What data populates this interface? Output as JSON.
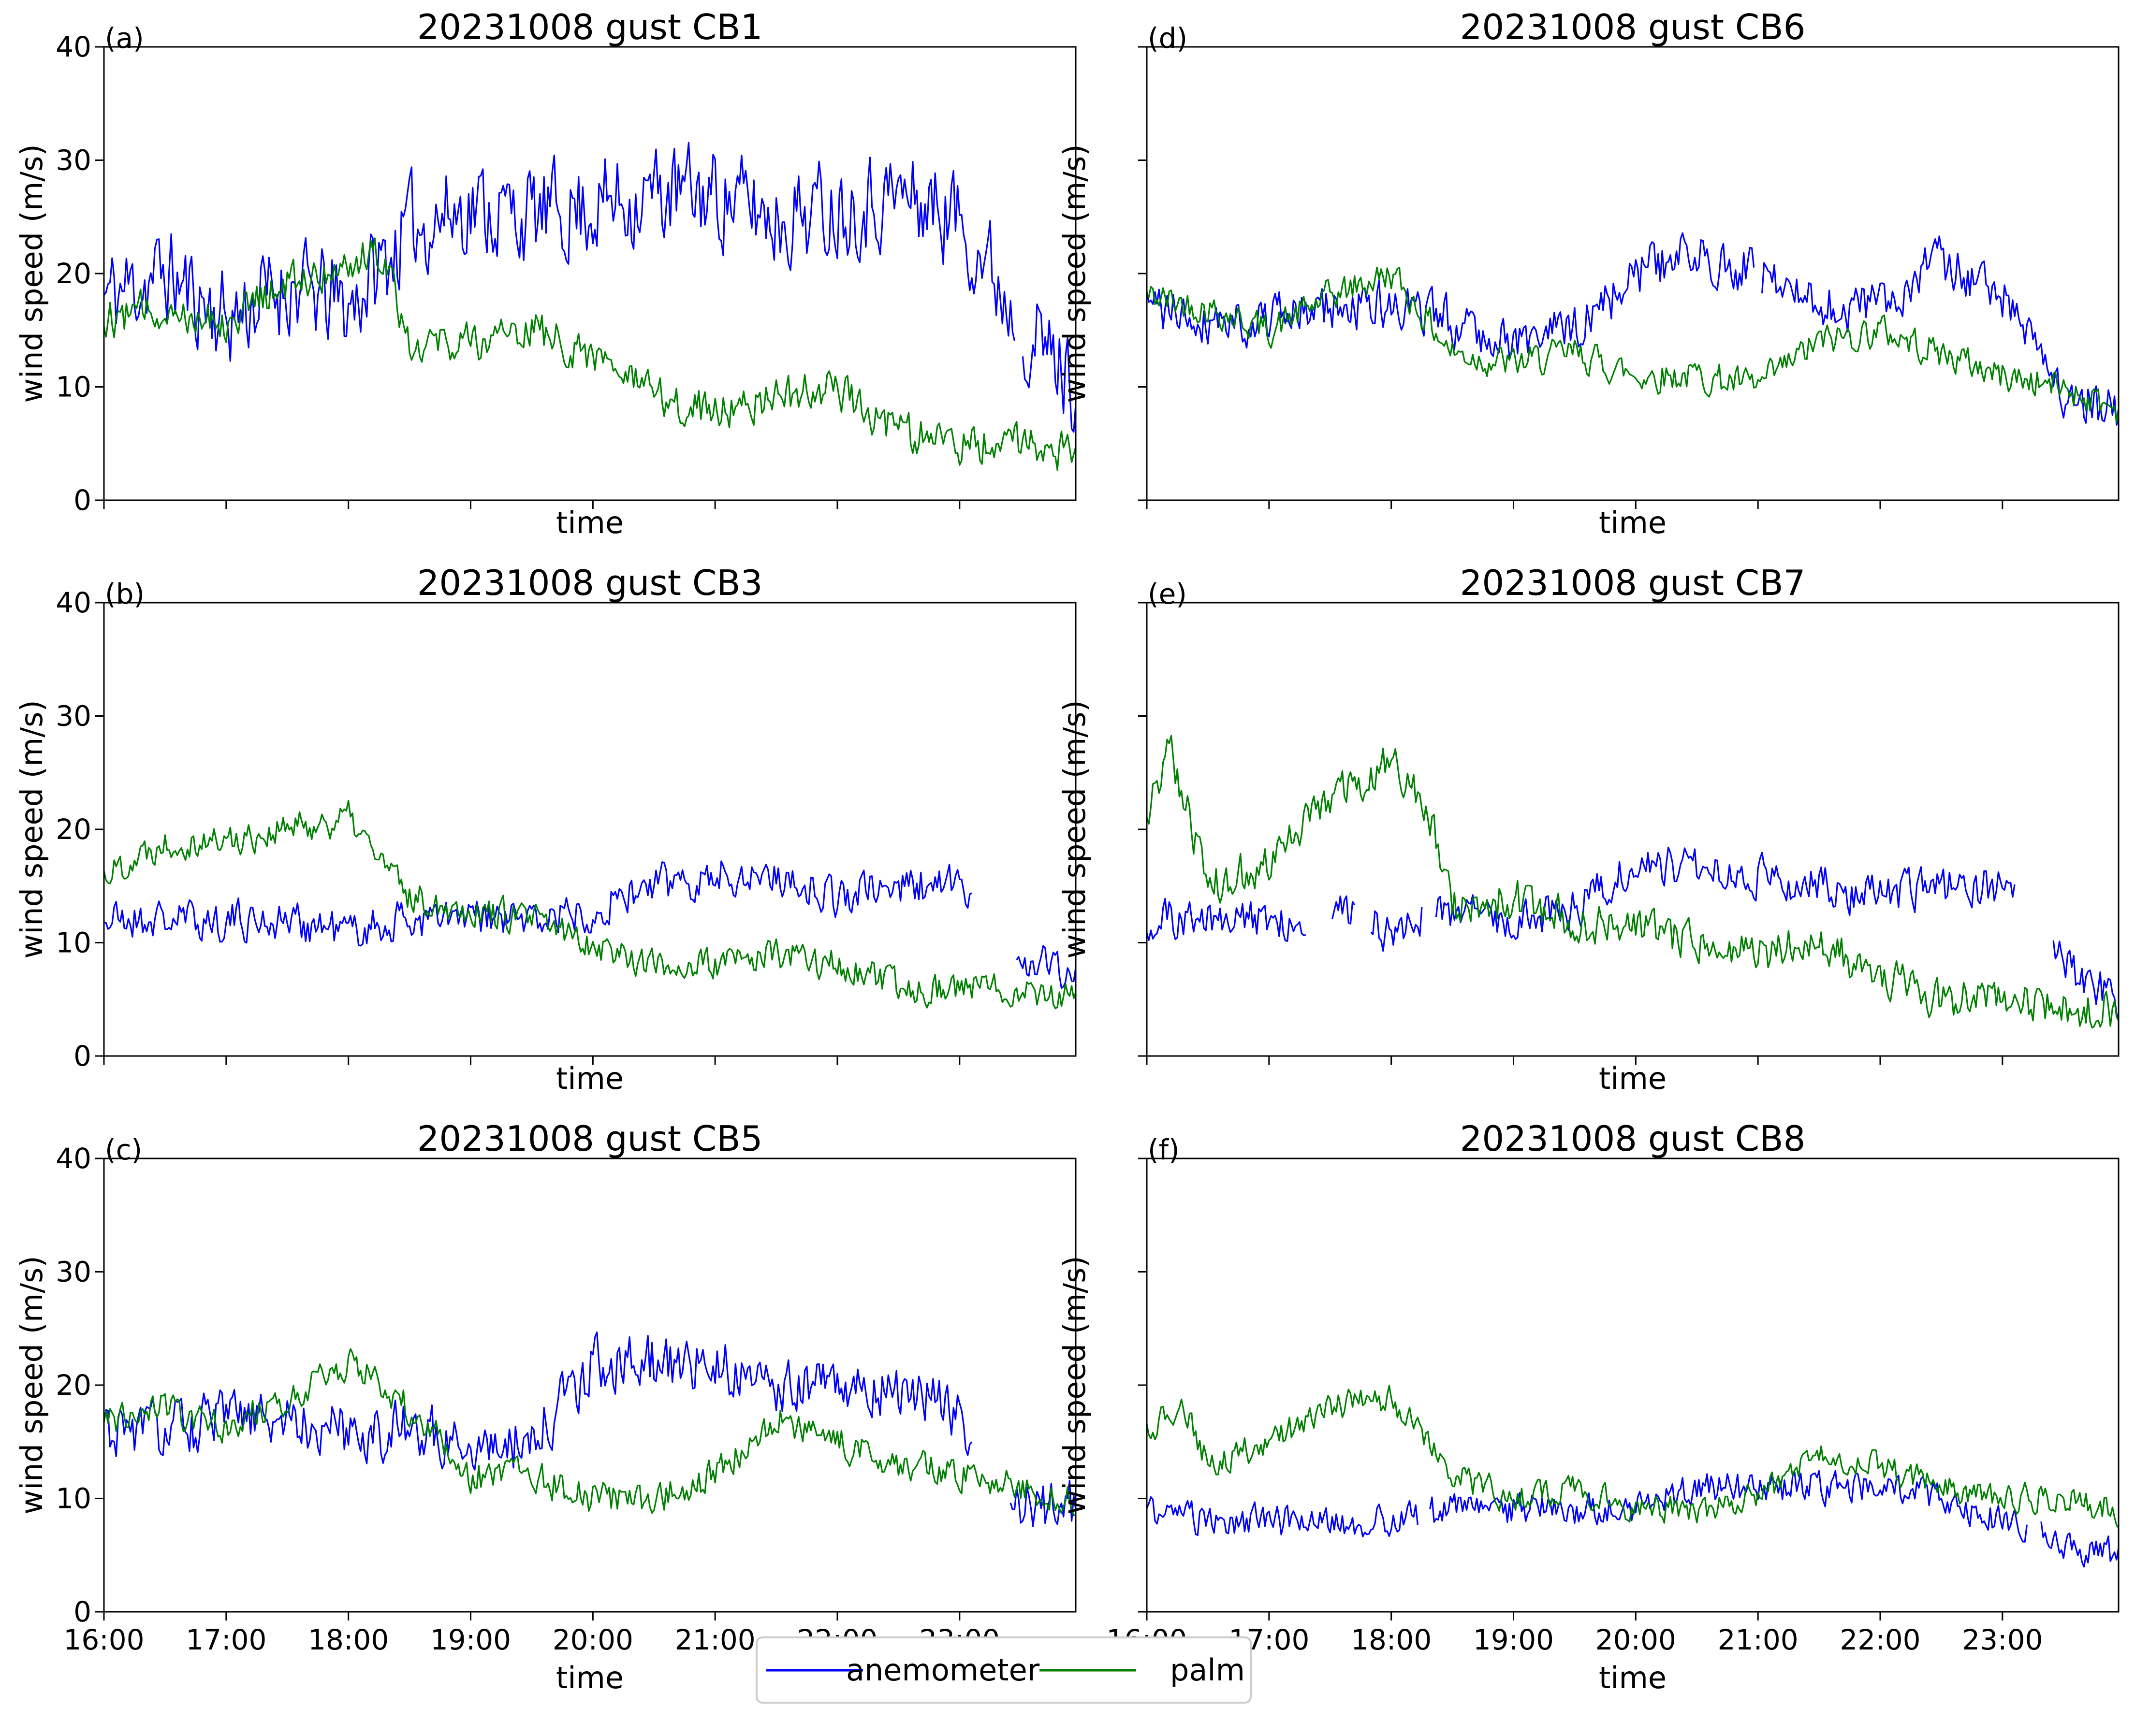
{
  "figure": {
    "legend": {
      "entries": [
        {
          "label": "anemometer",
          "color": "#0000ff"
        },
        {
          "label": "palm",
          "color": "#008000"
        }
      ]
    }
  },
  "chart_data": [
    {
      "type": "line",
      "panel": "(a)",
      "title": "20231008 gust CB1",
      "xlabel": "time",
      "ylabel": "wind speed (m/s)",
      "ylim": [
        0,
        40
      ],
      "xlim": [
        16.0,
        23.95
      ],
      "yticks": [
        0,
        10,
        20,
        30,
        40
      ],
      "show_ytick_labels": true,
      "xticks": [
        "16:00",
        "17:00",
        "18:00",
        "19:00",
        "20:00",
        "21:00",
        "22:00",
        "23:00"
      ],
      "show_xtick_labels": false,
      "series": [
        {
          "name": "anemometer",
          "color": "#0000ff",
          "x": [
            16.0,
            16.5,
            17.0,
            17.5,
            18.0,
            18.5,
            19.0,
            19.5,
            20.0,
            20.5,
            21.0,
            21.5,
            22.0,
            22.5,
            23.0,
            23.5,
            23.95
          ],
          "y": [
            18,
            20,
            16,
            19,
            17,
            24,
            26,
            25,
            26,
            27,
            27,
            25,
            26,
            27,
            25,
            16,
            10
          ],
          "amp": 6.0,
          "seed": 11,
          "gaps": [
            [
              23.45,
              23.5
            ]
          ]
        },
        {
          "name": "palm",
          "color": "#008000",
          "x": [
            16.0,
            16.5,
            17.0,
            17.5,
            18.0,
            18.3,
            18.5,
            19.0,
            19.5,
            20.0,
            20.5,
            21.0,
            21.5,
            22.0,
            22.5,
            23.0,
            23.5,
            23.95
          ],
          "y": [
            16,
            17,
            16,
            19,
            21,
            22,
            14,
            14,
            15,
            13,
            9,
            8,
            9,
            10,
            6,
            5,
            5,
            4
          ],
          "amp": 2.5,
          "seed": 12,
          "gaps": []
        }
      ]
    },
    {
      "type": "line",
      "panel": "(b)",
      "title": "20231008 gust CB3",
      "xlabel": "time",
      "ylabel": "wind speed (m/s)",
      "ylim": [
        0,
        40
      ],
      "xlim": [
        16.0,
        23.95
      ],
      "yticks": [
        0,
        10,
        20,
        30,
        40
      ],
      "show_ytick_labels": true,
      "xticks": [
        "16:00",
        "17:00",
        "18:00",
        "19:00",
        "20:00",
        "21:00",
        "22:00",
        "23:00"
      ],
      "show_xtick_labels": false,
      "series": [
        {
          "name": "anemometer",
          "color": "#0000ff",
          "x": [
            16.0,
            16.5,
            17.0,
            17.5,
            18.0,
            18.5,
            19.0,
            19.5,
            20.0,
            20.5,
            21.0,
            21.5,
            22.0,
            22.5,
            23.0,
            23.5,
            23.95
          ],
          "y": [
            12,
            12,
            12,
            12,
            11,
            12,
            12,
            12,
            13,
            15,
            16,
            16,
            14,
            15,
            15,
            9,
            7
          ],
          "amp": 2.5,
          "seed": 21,
          "gaps": [
            [
              23.1,
              23.45
            ]
          ]
        },
        {
          "name": "palm",
          "color": "#008000",
          "x": [
            16.0,
            16.5,
            17.0,
            17.5,
            18.0,
            18.5,
            19.0,
            19.5,
            20.0,
            20.5,
            21.0,
            21.5,
            22.0,
            22.5,
            23.0,
            23.5,
            23.95
          ],
          "y": [
            16,
            19,
            19,
            20,
            21,
            14,
            13,
            12,
            10,
            8,
            8,
            9,
            8,
            6,
            6,
            6,
            5
          ],
          "amp": 2.0,
          "seed": 22,
          "gaps": []
        }
      ]
    },
    {
      "type": "line",
      "panel": "(c)",
      "title": "20231008 gust CB5",
      "xlabel": "time",
      "ylabel": "wind speed (m/s)",
      "ylim": [
        0,
        40
      ],
      "xlim": [
        16.0,
        23.95
      ],
      "yticks": [
        0,
        10,
        20,
        30,
        40
      ],
      "show_ytick_labels": true,
      "xticks": [
        "16:00",
        "17:00",
        "18:00",
        "19:00",
        "20:00",
        "21:00",
        "22:00",
        "23:00"
      ],
      "show_xtick_labels": true,
      "series": [
        {
          "name": "anemometer",
          "color": "#0000ff",
          "x": [
            16.0,
            16.5,
            17.0,
            17.5,
            18.0,
            18.5,
            19.0,
            19.5,
            20.0,
            20.5,
            21.0,
            21.5,
            22.0,
            22.5,
            23.0,
            23.5,
            23.95
          ],
          "y": [
            16,
            16,
            17,
            17,
            16,
            16,
            15,
            15,
            22,
            22,
            22,
            20,
            20,
            20,
            17,
            10,
            9
          ],
          "amp": 3.5,
          "seed": 31,
          "gaps": [
            [
              23.1,
              23.4
            ]
          ]
        },
        {
          "name": "palm",
          "color": "#008000",
          "x": [
            16.0,
            16.5,
            17.0,
            17.5,
            18.0,
            18.5,
            19.0,
            19.5,
            20.0,
            20.5,
            21.0,
            21.5,
            22.0,
            22.5,
            23.0,
            23.5,
            23.95
          ],
          "y": [
            17,
            18,
            16,
            19,
            22,
            18,
            12,
            12,
            10,
            10,
            12,
            17,
            15,
            13,
            12,
            11,
            10
          ],
          "amp": 2.0,
          "seed": 32,
          "gaps": []
        }
      ]
    },
    {
      "type": "line",
      "panel": "(d)",
      "title": "20231008 gust CB6",
      "xlabel": "time",
      "ylabel": "wind speed (m/s)",
      "ylim": [
        0,
        40
      ],
      "xlim": [
        16.0,
        23.95
      ],
      "yticks": [
        0,
        10,
        20,
        30,
        40
      ],
      "show_ytick_labels": false,
      "xticks": [
        "16:00",
        "17:00",
        "18:00",
        "19:00",
        "20:00",
        "21:00",
        "22:00",
        "23:00"
      ],
      "show_xtick_labels": false,
      "series": [
        {
          "name": "anemometer",
          "color": "#0000ff",
          "x": [
            16.0,
            16.5,
            17.0,
            17.5,
            18.0,
            18.5,
            19.0,
            19.5,
            20.0,
            20.5,
            21.0,
            21.5,
            22.0,
            22.5,
            23.0,
            23.5,
            23.95
          ],
          "y": [
            17,
            16,
            16,
            17,
            17,
            16,
            14,
            15,
            20,
            22,
            20,
            17,
            17,
            21,
            18,
            9,
            8
          ],
          "amp": 3.0,
          "seed": 41,
          "gaps": [
            [
              20.98,
              21.02
            ]
          ]
        },
        {
          "name": "palm",
          "color": "#008000",
          "x": [
            16.0,
            16.5,
            17.0,
            17.5,
            18.0,
            18.5,
            19.0,
            19.5,
            20.0,
            20.5,
            21.0,
            21.5,
            22.0,
            22.5,
            23.0,
            23.5,
            23.95
          ],
          "y": [
            18,
            17,
            15,
            18,
            20,
            13,
            12,
            13,
            11,
            11,
            10,
            14,
            15,
            13,
            11,
            10,
            8
          ],
          "amp": 2.0,
          "seed": 42,
          "gaps": []
        }
      ]
    },
    {
      "type": "line",
      "panel": "(e)",
      "title": "20231008 gust CB7",
      "xlabel": "time",
      "ylabel": "wind speed (m/s)",
      "ylim": [
        0,
        40
      ],
      "xlim": [
        16.0,
        23.95
      ],
      "yticks": [
        0,
        10,
        20,
        30,
        40
      ],
      "show_ytick_labels": false,
      "xticks": [
        "16:00",
        "17:00",
        "18:00",
        "19:00",
        "20:00",
        "21:00",
        "22:00",
        "23:00"
      ],
      "show_xtick_labels": false,
      "series": [
        {
          "name": "anemometer",
          "color": "#0000ff",
          "x": [
            16.0,
            16.5,
            17.0,
            17.5,
            18.0,
            18.5,
            19.0,
            19.5,
            20.0,
            20.5,
            21.0,
            21.5,
            22.0,
            22.5,
            23.0,
            23.5,
            23.95
          ],
          "y": [
            12,
            12,
            12,
            13,
            11,
            13,
            12,
            13,
            17,
            17,
            16,
            15,
            14,
            15,
            15,
            8,
            5
          ],
          "amp": 2.5,
          "seed": 51,
          "gaps": [
            [
              17.3,
              17.5
            ],
            [
              17.7,
              17.82
            ],
            [
              18.25,
              18.35
            ],
            [
              23.1,
              23.4
            ]
          ]
        },
        {
          "name": "palm",
          "color": "#008000",
          "x": [
            16.0,
            16.2,
            16.5,
            17.0,
            17.5,
            18.0,
            18.3,
            18.5,
            19.0,
            19.5,
            20.0,
            20.5,
            21.0,
            21.5,
            22.0,
            22.5,
            23.0,
            23.5,
            23.95
          ],
          "y": [
            22,
            27,
            15,
            17,
            23,
            26,
            22,
            13,
            14,
            12,
            11,
            10,
            9,
            10,
            7,
            5,
            5,
            4,
            4
          ],
          "amp": 2.5,
          "seed": 52,
          "gaps": []
        }
      ]
    },
    {
      "type": "line",
      "panel": "(f)",
      "title": "20231008 gust CB8",
      "xlabel": "time",
      "ylabel": "wind speed (m/s)",
      "ylim": [
        0,
        40
      ],
      "xlim": [
        16.0,
        23.95
      ],
      "yticks": [
        0,
        10,
        20,
        30,
        40
      ],
      "show_ytick_labels": false,
      "xticks": [
        "16:00",
        "17:00",
        "18:00",
        "19:00",
        "20:00",
        "21:00",
        "22:00",
        "23:00"
      ],
      "show_xtick_labels": true,
      "series": [
        {
          "name": "anemometer",
          "color": "#0000ff",
          "x": [
            16.0,
            16.5,
            17.0,
            17.5,
            18.0,
            18.5,
            19.0,
            19.5,
            20.0,
            20.5,
            21.0,
            21.5,
            22.0,
            22.5,
            23.0,
            23.5,
            23.95
          ],
          "y": [
            9,
            8,
            8,
            8,
            8,
            9,
            9,
            9,
            9,
            11,
            11,
            11,
            11,
            10,
            8,
            6,
            5
          ],
          "amp": 2.0,
          "seed": 61,
          "gaps": [
            [
              18.22,
              18.3
            ],
            [
              23.2,
              23.3
            ]
          ]
        },
        {
          "name": "palm",
          "color": "#008000",
          "x": [
            16.0,
            16.3,
            16.5,
            17.0,
            17.5,
            18.0,
            18.5,
            19.0,
            19.5,
            20.0,
            20.5,
            21.0,
            21.5,
            22.0,
            22.5,
            23.0,
            23.5,
            23.95
          ],
          "y": [
            16,
            18,
            13,
            15,
            18,
            19,
            12,
            10,
            11,
            9,
            9,
            10,
            14,
            13,
            11,
            10,
            10,
            9
          ],
          "amp": 1.8,
          "seed": 62,
          "gaps": []
        }
      ]
    }
  ]
}
